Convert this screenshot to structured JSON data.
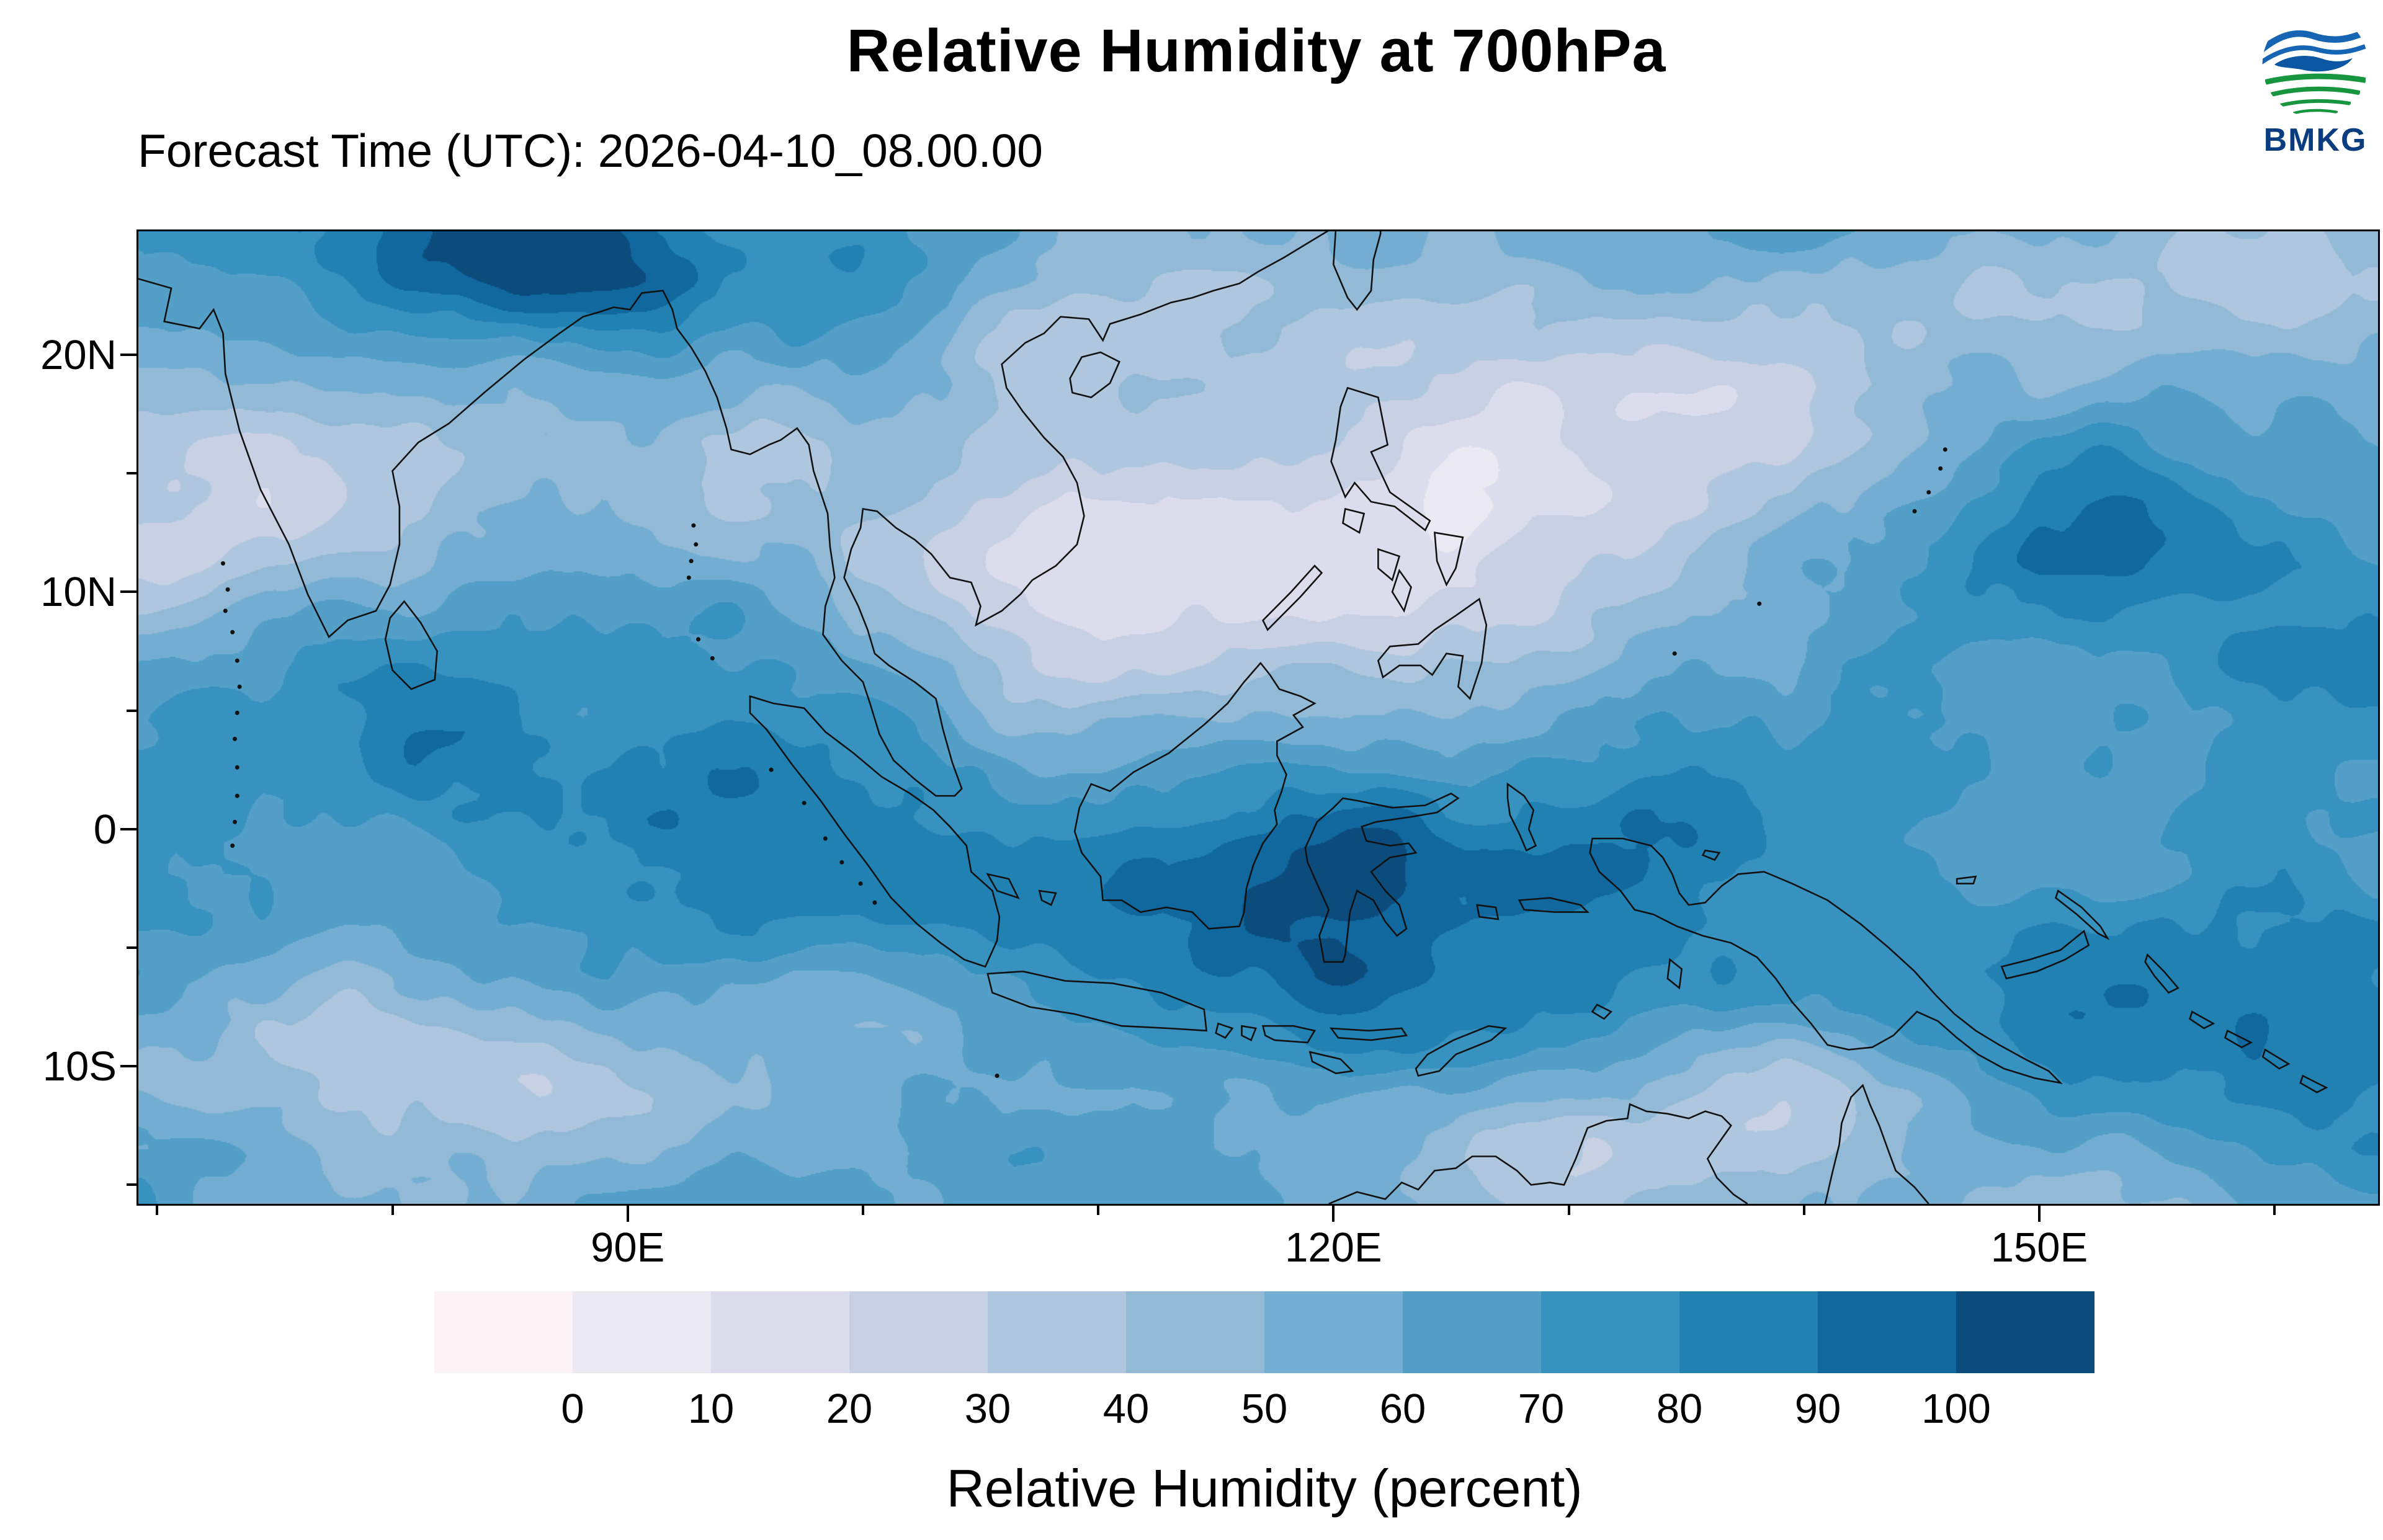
{
  "header": {
    "title": "Relative Humidity at 700hPa",
    "forecast_time_label": "Forecast Time (UTC): 2026-04-10_08.00.00",
    "logo_text": "BMKG"
  },
  "map_axes": {
    "lat_ticks": [
      {
        "deg": 20,
        "label": "20N"
      },
      {
        "deg": 10,
        "label": "10N"
      },
      {
        "deg": 0,
        "label": "0"
      },
      {
        "deg": -10,
        "label": "10S"
      }
    ],
    "lat_minor_ticks": [
      15,
      5,
      -5,
      -15
    ],
    "lon_ticks": [
      {
        "deg": 90,
        "label": "90E"
      },
      {
        "deg": 120,
        "label": "120E"
      },
      {
        "deg": 150,
        "label": "150E"
      }
    ],
    "lon_minor_ticks": [
      70,
      80,
      100,
      110,
      130,
      140,
      160
    ]
  },
  "colorbar": {
    "title": "Relative Humidity (percent)",
    "tick_labels": [
      "0",
      "10",
      "20",
      "30",
      "40",
      "50",
      "60",
      "70",
      "80",
      "90",
      "100"
    ],
    "colors": [
      "#fbf3f6",
      "#ebe9f2",
      "#dcddec",
      "#c8d0e3",
      "#aec6de",
      "#92bad7",
      "#73aed2",
      "#539fc8",
      "#3892bf",
      "#2181b2",
      "#10689e",
      "#0b4c7d"
    ]
  },
  "chart_data": {
    "type": "heatmap",
    "title": "Relative Humidity at 700hPa",
    "colorbar_label": "Relative Humidity (percent)",
    "levels_percent": [
      0,
      10,
      20,
      30,
      40,
      50,
      60,
      70,
      80,
      90,
      100
    ],
    "x_tick_labels": [
      "90E",
      "120E",
      "150E"
    ],
    "y_tick_labels": [
      "20N",
      "10N",
      "0",
      "10S"
    ]
  }
}
